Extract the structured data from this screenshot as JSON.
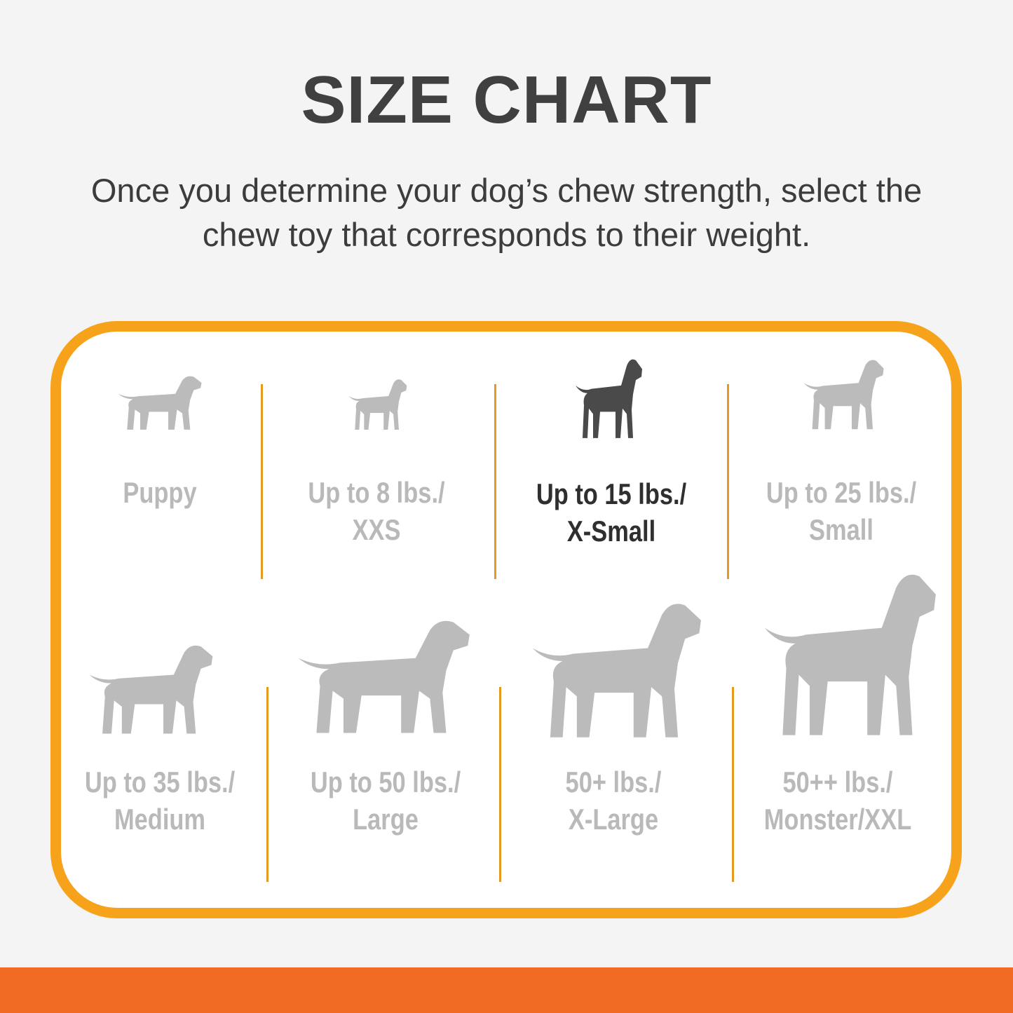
{
  "header": {
    "title": "SIZE CHART",
    "subtitle_line1": "Once you determine your dog’s chew strength, select the",
    "subtitle_line2": "chew toy that corresponds to their weight."
  },
  "colors": {
    "accent_border": "#f7a21b",
    "bottom_bar": "#f26b22",
    "inactive": "#bbbbbb",
    "active": "#4a4a4a"
  },
  "sizes": [
    {
      "line1": "Puppy",
      "line2": "",
      "icon": "puppy-silhouette-icon",
      "active": false
    },
    {
      "line1": "Up to 8 lbs./",
      "line2": "XXS",
      "icon": "chihuahua-silhouette-icon",
      "active": false
    },
    {
      "line1": "Up to 15 lbs./",
      "line2": "X-Small",
      "icon": "toy-terrier-silhouette-icon",
      "active": true
    },
    {
      "line1": "Up to 25 lbs./",
      "line2": "Small",
      "icon": "westie-silhouette-icon",
      "active": false
    },
    {
      "line1": "Up to 35 lbs./",
      "line2": "Medium",
      "icon": "beagle-silhouette-icon",
      "active": false
    },
    {
      "line1": "Up to 50 lbs./",
      "line2": "Large",
      "icon": "labrador-silhouette-icon",
      "active": false
    },
    {
      "line1": "50+ lbs./",
      "line2": "X-Large",
      "icon": "shepherd-silhouette-icon",
      "active": false
    },
    {
      "line1": "50++ lbs./",
      "line2": "Monster/XXL",
      "icon": "great-dane-silhouette-icon",
      "active": false
    }
  ]
}
